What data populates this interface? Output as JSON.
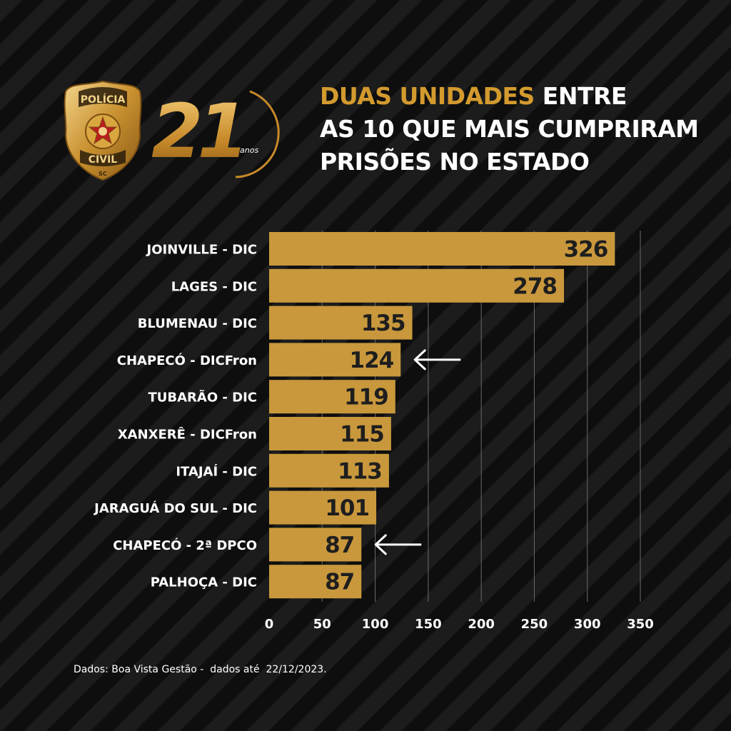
{
  "badge": {
    "top_text": "POLÍCIA",
    "bottom_text": "CIVIL",
    "state": "SC"
  },
  "anniversary": {
    "number": "21",
    "unit": "anos"
  },
  "headline": {
    "highlight": "DUAS UNIDADES",
    "line1_rest": " ENTRE",
    "line2": "AS 10 QUE MAIS CUMPRIRAM",
    "line3": "PRISÕES NO ESTADO"
  },
  "chart_data": {
    "type": "bar",
    "orientation": "horizontal",
    "categories": [
      "JOINVILLE - DIC",
      "LAGES - DIC",
      "BLUMENAU - DIC",
      "CHAPECÓ - DICFron",
      "TUBARÃO - DIC",
      "XANXERÊ - DICFron",
      "ITAJAÍ - DIC",
      "JARAGUÁ DO SUL - DIC",
      "CHAPECÓ - 2ª DPCO",
      "PALHOÇA - DIC"
    ],
    "values": [
      326,
      278,
      135,
      124,
      119,
      115,
      113,
      101,
      87,
      87
    ],
    "highlighted": [
      "CHAPECÓ - DICFron",
      "CHAPECÓ - 2ª DPCO"
    ],
    "xticks": [
      0,
      50,
      100,
      150,
      200,
      250,
      300,
      350
    ],
    "xlim": [
      0,
      350
    ],
    "grid": true,
    "bar_color": "#c9983c",
    "title": "",
    "xlabel": "",
    "ylabel": ""
  },
  "source": "Dados: Boa Vista Gestão -  dados até  22/12/2023.",
  "colors": {
    "accent": "#d39a2e",
    "text": "#ffffff",
    "background": "#151515"
  }
}
